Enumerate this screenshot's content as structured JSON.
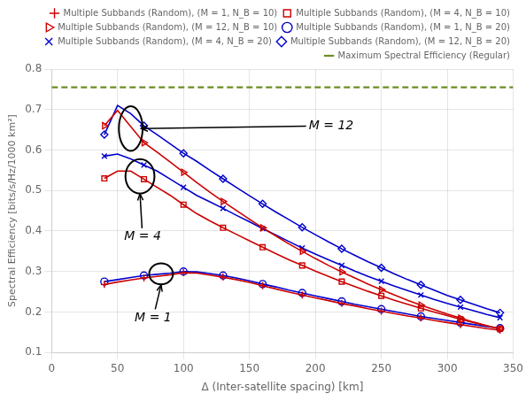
{
  "chart_data": {
    "type": "line",
    "xlabel": "Δ (Inter-satellite spacing) [km]",
    "ylabel": "Spectral Efficiency [bits/s/Hz/1000 km²]",
    "x": [
      40,
      50,
      60,
      70,
      80,
      90,
      100,
      110,
      120,
      130,
      140,
      150,
      160,
      170,
      180,
      190,
      200,
      210,
      220,
      230,
      240,
      250,
      260,
      270,
      280,
      290,
      300,
      310,
      320,
      330,
      340
    ],
    "xlim": [
      0,
      350
    ],
    "ylim": [
      0.1,
      0.8
    ],
    "xticks": [
      0,
      50,
      100,
      150,
      200,
      250,
      300,
      350
    ],
    "yticks": [
      0.1,
      0.2,
      0.3,
      0.4,
      0.5,
      0.6,
      0.7,
      0.8
    ],
    "grid": true,
    "legend": "upper right",
    "series": [
      {
        "name": "Multiple Subbands (Random), (M = 1, N_B = 10)",
        "color": "#CC0000",
        "marker": "plus",
        "line_style": "solid",
        "values": [
          0.268,
          0.274,
          0.279,
          0.284,
          0.288,
          0.292,
          0.297,
          0.296,
          0.291,
          0.286,
          0.28,
          0.273,
          0.265,
          0.257,
          0.249,
          0.242,
          0.235,
          0.228,
          0.221,
          0.215,
          0.208,
          0.202,
          0.196,
          0.19,
          0.185,
          0.179,
          0.174,
          0.169,
          0.164,
          0.159,
          0.155
        ]
      },
      {
        "name": "Multiple Subbands (Random), (M = 4, N_B = 10)",
        "color": "#CC0000",
        "marker": "square",
        "line_style": "solid",
        "values": [
          0.53,
          0.548,
          0.548,
          0.528,
          0.508,
          0.488,
          0.465,
          0.443,
          0.425,
          0.408,
          0.392,
          0.376,
          0.36,
          0.344,
          0.329,
          0.315,
          0.301,
          0.288,
          0.275,
          0.263,
          0.251,
          0.24,
          0.229,
          0.219,
          0.209,
          0.2,
          0.191,
          0.182,
          0.174,
          0.166,
          0.159
        ]
      },
      {
        "name": "Multiple Subbands (Random), (M = 12, N_B = 10)",
        "color": "#CC0000",
        "marker": "triangle_right",
        "line_style": "solid",
        "values": [
          0.66,
          0.698,
          0.658,
          0.618,
          0.595,
          0.57,
          0.545,
          0.52,
          0.496,
          0.473,
          0.451,
          0.429,
          0.408,
          0.388,
          0.368,
          0.35,
          0.332,
          0.315,
          0.299,
          0.284,
          0.269,
          0.255,
          0.242,
          0.229,
          0.217,
          0.206,
          0.195,
          0.185,
          0.175,
          0.166,
          0.158
        ]
      },
      {
        "name": "Multiple Subbands (Random), (M = 1, N_B = 20)",
        "color": "#0000CC",
        "marker": "circle",
        "line_style": "solid",
        "values": [
          0.275,
          0.28,
          0.285,
          0.29,
          0.293,
          0.296,
          0.3,
          0.299,
          0.295,
          0.29,
          0.284,
          0.277,
          0.269,
          0.262,
          0.254,
          0.247,
          0.24,
          0.233,
          0.226,
          0.219,
          0.213,
          0.207,
          0.201,
          0.195,
          0.189,
          0.184,
          0.179,
          0.174,
          0.169,
          0.164,
          0.16
        ]
      },
      {
        "name": "Multiple Subbands (Random), (M = 4, N_B = 20)",
        "color": "#0000CC",
        "marker": "x",
        "line_style": "solid",
        "values": [
          0.585,
          0.59,
          0.578,
          0.563,
          0.548,
          0.528,
          0.508,
          0.488,
          0.472,
          0.456,
          0.439,
          0.423,
          0.406,
          0.39,
          0.374,
          0.358,
          0.343,
          0.329,
          0.315,
          0.301,
          0.288,
          0.276,
          0.264,
          0.253,
          0.242,
          0.231,
          0.221,
          0.212,
          0.203,
          0.194,
          0.186
        ]
      },
      {
        "name": "Multiple Subbands (Random), (M = 12, N_B = 20)",
        "color": "#0000CC",
        "marker": "diamond",
        "line_style": "solid",
        "values": [
          0.638,
          0.71,
          0.69,
          0.66,
          0.638,
          0.615,
          0.592,
          0.572,
          0.55,
          0.529,
          0.508,
          0.487,
          0.467,
          0.447,
          0.428,
          0.409,
          0.391,
          0.373,
          0.356,
          0.34,
          0.324,
          0.309,
          0.294,
          0.28,
          0.267,
          0.254,
          0.241,
          0.23,
          0.219,
          0.208,
          0.198
        ]
      }
    ],
    "reference_lines": [
      {
        "name": "Maximum Spectral Efficiency (Regular)",
        "color": "#6B8E23",
        "line_style": "dashed",
        "y": 0.755
      }
    ],
    "annotations": [
      {
        "text": "M = 12",
        "x": 195,
        "y": 0.66,
        "arrow_x": 68,
        "arrow_y": 0.653,
        "ellipse": {
          "x": 60,
          "y": 0.653,
          "width": 18,
          "height": 0.11
        }
      },
      {
        "text": "M = 4",
        "x": 55,
        "y": 0.385,
        "arrow_x": 67,
        "arrow_y": 0.492,
        "ellipse": {
          "x": 67,
          "y": 0.535,
          "width": 22,
          "height": 0.085
        }
      },
      {
        "text": "M = 1",
        "x": 63,
        "y": 0.185,
        "arrow_x": 83,
        "arrow_y": 0.267,
        "ellipse": {
          "x": 83,
          "y": 0.294,
          "width": 18,
          "height": 0.052
        }
      }
    ]
  }
}
